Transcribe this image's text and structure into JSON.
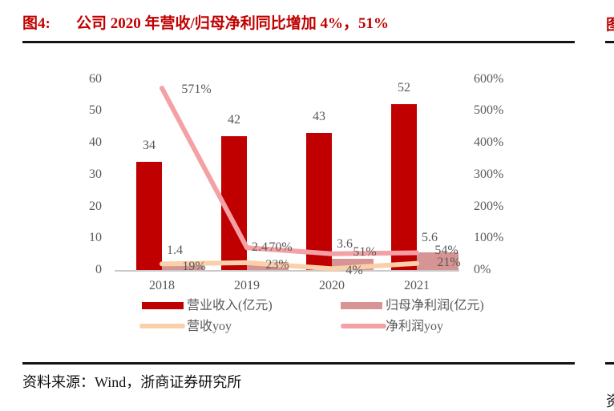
{
  "title": {
    "tag": "图4:",
    "text": "公司 2020 年营收/归母净利同比增加 4%，51%"
  },
  "source": "资料来源：Wind，浙商证券研究所",
  "fragments": {
    "top_right": "图",
    "bottom_right": "资"
  },
  "colors": {
    "title_red": "#C00000",
    "revenue_bar": "#C00000",
    "profit_bar": "#D69494",
    "revenue_yoy_line": "#F9D0A9",
    "profit_yoy_line": "#F4A1A6",
    "axis_gray": "#C8C8C8",
    "label_gray": "#595959",
    "rule_black": "#141414"
  },
  "chart_data": {
    "type": "bar+line",
    "categories": [
      "2018",
      "2019",
      "2020",
      "2021"
    ],
    "series": [
      {
        "name": "营业收入(亿元)",
        "type": "bar",
        "axis": "left",
        "values": [
          34,
          42,
          43,
          52
        ],
        "labels": [
          "34",
          "42",
          "43",
          "52"
        ],
        "color": "#C00000"
      },
      {
        "name": "归母净利润(亿元)",
        "type": "bar",
        "axis": "left",
        "values": [
          1.4,
          2.4,
          3.6,
          5.6
        ],
        "labels": [
          "1.4",
          "2.4",
          "3.6",
          "5.6"
        ],
        "color": "#D69494"
      },
      {
        "name": "营收yoy",
        "type": "line",
        "axis": "right",
        "values": [
          19,
          23,
          4,
          21
        ],
        "labels": [
          "19%",
          "23%",
          "4%",
          "21%"
        ],
        "color": "#F9D0A9"
      },
      {
        "name": "净利润yoy",
        "type": "line",
        "axis": "right",
        "values": [
          571,
          70,
          51,
          54
        ],
        "labels": [
          "571%",
          "70%",
          "51%",
          "54%"
        ],
        "color": "#F4A1A6"
      }
    ],
    "left_axis": {
      "min": 0,
      "max": 60,
      "ticks": [
        "0",
        "10",
        "20",
        "30",
        "40",
        "50",
        "60"
      ]
    },
    "right_axis": {
      "min": 0,
      "max": 600,
      "ticks": [
        "0%",
        "100%",
        "200%",
        "300%",
        "400%",
        "500%",
        "600%"
      ]
    },
    "grid": false,
    "legend_position": "bottom"
  }
}
